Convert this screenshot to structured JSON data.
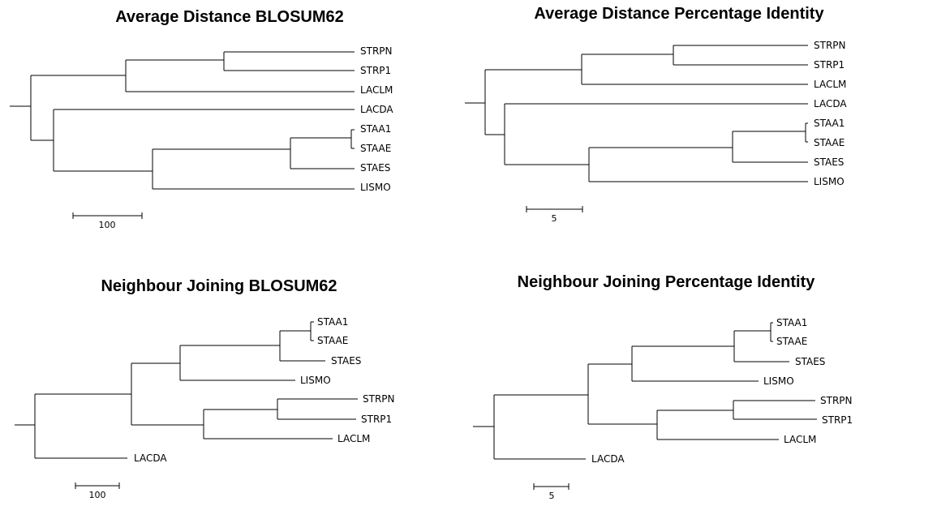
{
  "trees": [
    {
      "title": "Average Distance BLOSUM62",
      "leaves": [
        "STRPN",
        "STRP1",
        "LACLM",
        "LACDA",
        "STAA1",
        "STAAE",
        "STAES",
        "LISMO"
      ],
      "scale_label": "100"
    },
    {
      "title": "Average Distance Percentage Identity",
      "leaves": [
        "STRPN",
        "STRP1",
        "LACLM",
        "LACDA",
        "STAA1",
        "STAAE",
        "STAES",
        "LISMO"
      ],
      "scale_label": "5"
    },
    {
      "title": "Neighbour Joining BLOSUM62",
      "leaves": [
        "STAA1",
        "STAAE",
        "STAES",
        "LISMO",
        "STRPN",
        "STRP1",
        "LACLM",
        "LACDA"
      ],
      "scale_label": "100"
    },
    {
      "title": "Neighbour Joining Percentage Identity",
      "leaves": [
        "STAA1",
        "STAAE",
        "STAES",
        "LISMO",
        "STRPN",
        "STRP1",
        "LACLM",
        "LACDA"
      ],
      "scale_label": "5"
    }
  ]
}
